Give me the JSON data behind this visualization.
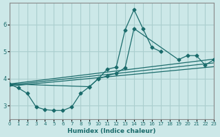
{
  "xlabel": "Humidex (Indice chaleur)",
  "xlim": [
    0,
    23
  ],
  "ylim": [
    2.5,
    6.8
  ],
  "yticks": [
    3,
    4,
    5,
    6
  ],
  "xticks": [
    0,
    1,
    2,
    3,
    4,
    5,
    6,
    7,
    8,
    9,
    10,
    11,
    12,
    13,
    14,
    15,
    16,
    17,
    18,
    19,
    20,
    21,
    22,
    23
  ],
  "bg_color": "#cce8e8",
  "line_color": "#1a6b6b",
  "grid_color": "#aacece",
  "curve1_x": [
    0,
    1,
    2,
    3,
    4,
    5,
    6,
    7,
    8,
    9,
    10,
    11,
    12,
    13,
    14,
    15,
    16,
    17
  ],
  "curve1_y": [
    3.8,
    3.65,
    3.45,
    2.95,
    2.85,
    2.82,
    2.82,
    2.95,
    3.45,
    3.7,
    4.0,
    4.35,
    4.42,
    5.8,
    6.55,
    5.85,
    5.15,
    5.0
  ],
  "curve2_x": [
    0,
    9,
    10,
    11,
    12,
    13,
    14,
    19,
    20,
    21,
    22,
    23
  ],
  "curve2_y": [
    3.8,
    3.7,
    4.0,
    4.1,
    4.2,
    4.4,
    5.85,
    4.7,
    4.85,
    4.85,
    4.5,
    4.7
  ],
  "straight_lines": [
    {
      "x": [
        0,
        23
      ],
      "y": [
        3.8,
        4.72
      ]
    },
    {
      "x": [
        0,
        23
      ],
      "y": [
        3.76,
        4.58
      ]
    },
    {
      "x": [
        0,
        23
      ],
      "y": [
        3.72,
        4.44
      ]
    }
  ]
}
